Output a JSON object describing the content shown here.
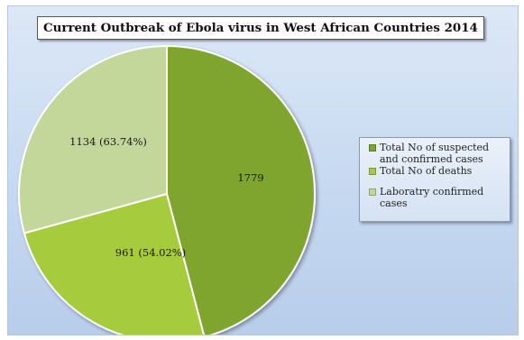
{
  "chart_data": {
    "type": "pie",
    "title": "Current Outbreak of Ebola virus in West African Countries 2014",
    "slices": [
      {
        "name": "Total No of suspected and confirmed cases",
        "value": 1779,
        "label": "1779",
        "color": "#7fa52e"
      },
      {
        "name": "Total No of deaths",
        "value": 961,
        "label": "961 (54.02%)",
        "color": "#a6cb3e"
      },
      {
        "name": "Laboratry confirmed cases",
        "value": 1134,
        "label": "1134 (63.74%)",
        "color": "#c3d79a"
      }
    ],
    "legend_position": "right"
  }
}
